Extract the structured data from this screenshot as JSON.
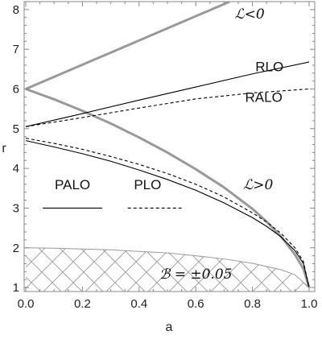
{
  "chart_data": {
    "type": "line",
    "xlabel": "a",
    "ylabel": "r",
    "xlim": [
      0,
      1
    ],
    "ylim": [
      0.9,
      8.2
    ],
    "x_ticks": [
      "0.0",
      "0.2",
      "0.4",
      "0.6",
      "0.8",
      "1.0"
    ],
    "y_ticks": [
      "1",
      "2",
      "3",
      "4",
      "5",
      "6",
      "7",
      "8"
    ],
    "x_tick_values": [
      0,
      0.2,
      0.4,
      0.6,
      0.8,
      1.0
    ],
    "y_tick_values": [
      1,
      2,
      3,
      4,
      5,
      6,
      7,
      8
    ],
    "grid": false,
    "series": [
      {
        "name": "ℒ<0",
        "style": "thick-gray",
        "color": "#999999",
        "x": [
          0.0,
          0.72
        ],
        "y": [
          6.0,
          8.2
        ]
      },
      {
        "name": "ℒ>0",
        "style": "thick-gray",
        "color": "#999999",
        "x": [
          0.0,
          0.1,
          0.2,
          0.3,
          0.4,
          0.5,
          0.6,
          0.7,
          0.8,
          0.85,
          0.9,
          0.95,
          0.98,
          1.0
        ],
        "y": [
          6.0,
          5.74,
          5.45,
          5.13,
          4.78,
          4.4,
          3.98,
          3.52,
          2.98,
          2.66,
          2.29,
          1.83,
          1.47,
          1.0
        ]
      },
      {
        "name": "RLO",
        "style": "solid",
        "color": "#000000",
        "x": [
          0.0,
          0.2,
          0.4,
          0.6,
          0.8,
          1.0
        ],
        "y": [
          5.05,
          5.38,
          5.72,
          6.05,
          6.38,
          6.68
        ]
      },
      {
        "name": "RALO",
        "style": "dashed",
        "color": "#000000",
        "x": [
          0.0,
          0.2,
          0.4,
          0.6,
          0.8,
          1.0
        ],
        "y": [
          5.05,
          5.28,
          5.52,
          5.75,
          5.9,
          6.0
        ]
      },
      {
        "name": "PALO",
        "style": "solid",
        "color": "#000000",
        "x": [
          0.0,
          0.1,
          0.2,
          0.3,
          0.4,
          0.5,
          0.6,
          0.7,
          0.8,
          0.85,
          0.9,
          0.95,
          0.98,
          1.0
        ],
        "y": [
          4.7,
          4.54,
          4.37,
          4.18,
          3.96,
          3.72,
          3.45,
          3.13,
          2.76,
          2.54,
          2.28,
          1.93,
          1.6,
          1.0
        ]
      },
      {
        "name": "PLO",
        "style": "dashed",
        "color": "#000000",
        "x": [
          0.0,
          0.1,
          0.2,
          0.3,
          0.4,
          0.5,
          0.6,
          0.7,
          0.8,
          0.85,
          0.9,
          0.95,
          0.98,
          1.0
        ],
        "y": [
          4.76,
          4.63,
          4.48,
          4.3,
          4.1,
          3.87,
          3.6,
          3.28,
          2.88,
          2.65,
          2.37,
          2.0,
          1.65,
          1.0
        ]
      }
    ],
    "region": {
      "label": "ℬ = ±0.05",
      "pattern": "crosshatch",
      "color": "#999999",
      "upper_x": [
        0.0,
        0.1,
        0.2,
        0.3,
        0.4,
        0.5,
        0.6,
        0.7,
        0.8,
        0.9,
        0.95,
        1.0
      ],
      "upper_y": [
        2.0,
        1.99,
        1.97,
        1.95,
        1.91,
        1.87,
        1.8,
        1.72,
        1.61,
        1.45,
        1.32,
        1.0
      ],
      "lower": 0.9
    },
    "annotations": [
      {
        "text": "ℒ<0",
        "x": 0.79,
        "y": 7.9
      },
      {
        "text": "RLO",
        "x": 0.86,
        "y": 6.57
      },
      {
        "text": "RALO",
        "x": 0.84,
        "y": 5.8
      },
      {
        "text": "ℒ>0",
        "x": 0.82,
        "y": 3.6
      },
      {
        "text": "PALO",
        "x": 0.165,
        "y": 3.6
      },
      {
        "text": "PLO",
        "x": 0.43,
        "y": 3.6
      },
      {
        "text": "ℬ = ±0.05",
        "x": 0.6,
        "y": 1.35
      }
    ],
    "legend_samples": [
      {
        "series": "PALO",
        "style": "solid",
        "x": [
          0.06,
          0.27
        ],
        "y": 3.0
      },
      {
        "series": "PLO",
        "style": "dashed",
        "x": [
          0.36,
          0.55
        ],
        "y": 3.0
      }
    ]
  }
}
